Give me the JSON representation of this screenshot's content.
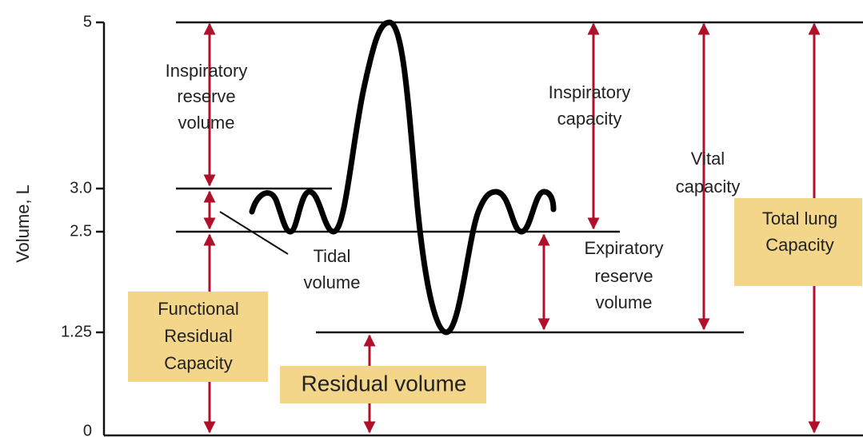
{
  "axis": {
    "label": "Volume, L",
    "ticks": [
      "5",
      "3.0",
      "2.5",
      "1.25",
      "0"
    ]
  },
  "labels": {
    "inspiratory_reserve_volume": [
      "Inspiratory",
      "reserve",
      "volume"
    ],
    "tidal_volume": [
      "Tidal",
      "volume"
    ],
    "inspiratory_capacity": [
      "Inspiratory",
      "capacity"
    ],
    "vital_capacity": [
      "Vital",
      "capacity"
    ],
    "expiratory_reserve_volume": [
      "Expiratory",
      "reserve",
      "volume"
    ],
    "functional_residual_capacity": [
      "Functional",
      "Residual",
      "Capacity"
    ],
    "residual_volume": "Residual volume",
    "total_lung_capacity": [
      "Total lung",
      "Capacity"
    ]
  }
}
